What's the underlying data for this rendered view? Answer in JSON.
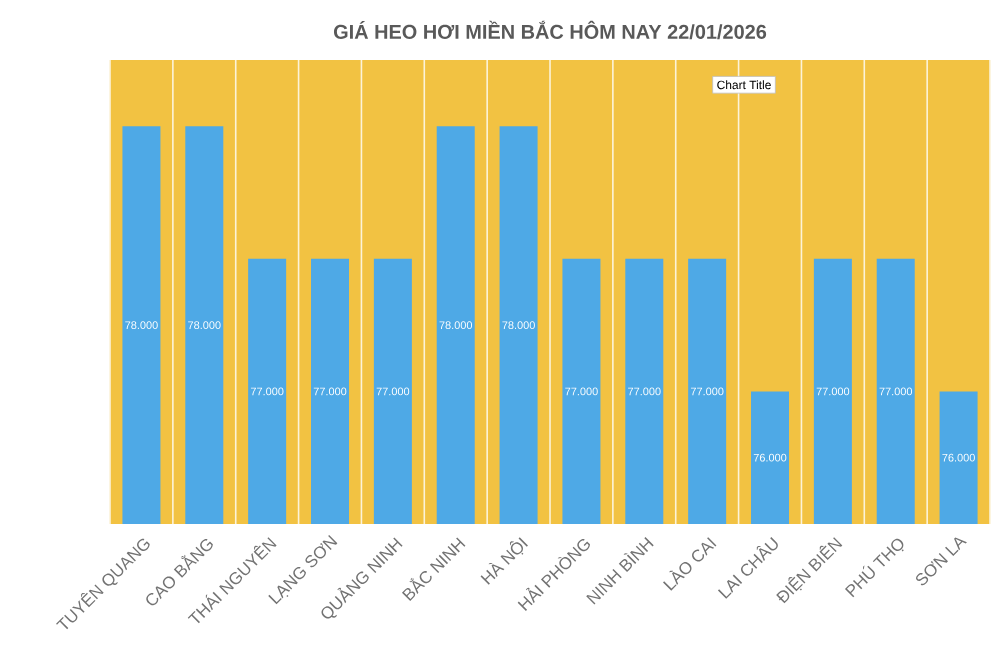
{
  "chart_data": {
    "type": "bar",
    "title": "GIÁ HEO HƠI MIỀN BẮC HÔM NAY 22/01/2026",
    "categories": [
      "TUYÊN QUANG",
      "CAO BẰNG",
      "THÁI NGUYÊN",
      "LẠNG SƠN",
      "QUẢNG NINH",
      "BẮC NINH",
      "HÀ NỘI",
      "HẢI PHÒNG",
      "NINH BÌNH",
      "LÀO CAI",
      "LAI CHÂU",
      "ĐIỆN BIÊN",
      "PHÚ THỌ",
      "SƠN LA"
    ],
    "values": [
      78000,
      78000,
      77000,
      77000,
      77000,
      78000,
      78000,
      77000,
      77000,
      77000,
      76000,
      77000,
      77000,
      76000
    ],
    "value_labels": [
      "78.000",
      "78.000",
      "77.000",
      "77.000",
      "77.000",
      "78.000",
      "78.000",
      "77.000",
      "77.000",
      "77.000",
      "76.000",
      "77.000",
      "77.000",
      "76.000"
    ],
    "color": "#4ea9e6",
    "ylim": [
      75000,
      78500
    ],
    "grid": "x",
    "tick_labels": "x",
    "annotations": [
      "Chart Title"
    ]
  }
}
